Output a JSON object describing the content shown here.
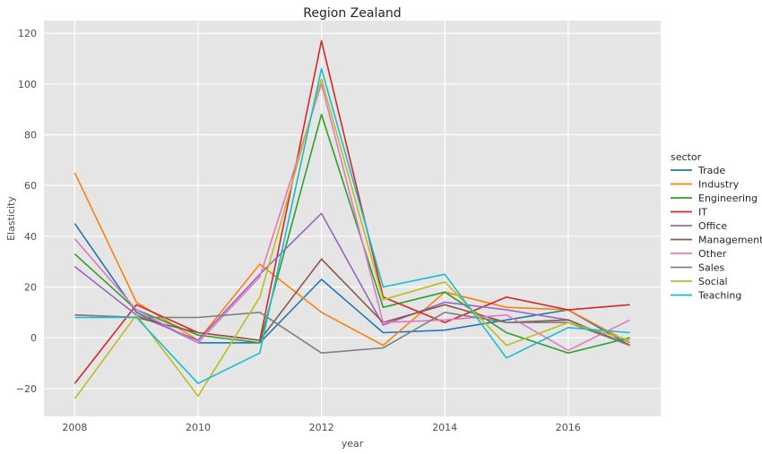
{
  "chart_data": {
    "type": "line",
    "title": "Region Zealand",
    "xlabel": "year",
    "ylabel": "Elasticity",
    "x": [
      2008,
      2009,
      2010,
      2011,
      2012,
      2013,
      2014,
      2015,
      2016,
      2017
    ],
    "xticks": [
      2008,
      2010,
      2012,
      2014,
      2016
    ],
    "yticks": [
      -20,
      0,
      20,
      40,
      60,
      80,
      100,
      120
    ],
    "xlim": [
      2007.5,
      2017.5
    ],
    "ylim": [
      -31,
      125
    ],
    "grid": true,
    "legend": {
      "title": "sector",
      "placement": "right"
    },
    "series": [
      {
        "name": "Trade",
        "color": "#1f77b4",
        "values": [
          45,
          10,
          -2,
          -2,
          23,
          2,
          3,
          7,
          11,
          -3
        ]
      },
      {
        "name": "Industry",
        "color": "#ff7f0e",
        "values": [
          65,
          14,
          -1,
          29,
          10,
          -3,
          18,
          12,
          11,
          -2
        ]
      },
      {
        "name": "Engineering",
        "color": "#2ca02c",
        "values": [
          33,
          11,
          1,
          -2,
          88,
          12,
          18,
          2,
          -6,
          0
        ]
      },
      {
        "name": "IT",
        "color": "#d62728",
        "values": [
          -18,
          13,
          2,
          -1,
          117,
          16,
          6,
          16,
          11,
          13
        ]
      },
      {
        "name": "Office",
        "color": "#9467bd",
        "values": [
          28,
          9,
          -1,
          25,
          49,
          5,
          14,
          11,
          7,
          -3
        ]
      },
      {
        "name": "Management",
        "color": "#8c564b",
        "values": [
          9,
          8,
          2,
          -1,
          31,
          6,
          13,
          6,
          7,
          -3
        ]
      },
      {
        "name": "Other",
        "color": "#e377c2",
        "values": [
          39,
          11,
          -2,
          24,
          100,
          6,
          7,
          9,
          -5,
          7
        ]
      },
      {
        "name": "Sales",
        "color": "#7f7f7f",
        "values": [
          9,
          8,
          8,
          10,
          -6,
          -4,
          10,
          6,
          6,
          -3
        ]
      },
      {
        "name": "Social",
        "color": "#bcbd22",
        "values": [
          -24,
          9,
          -23,
          16,
          102,
          15,
          22,
          -3,
          6,
          -1
        ]
      },
      {
        "name": "Teaching",
        "color": "#17becf",
        "values": [
          8,
          8,
          -18,
          -6,
          106,
          20,
          25,
          -8,
          4,
          2
        ]
      }
    ]
  }
}
